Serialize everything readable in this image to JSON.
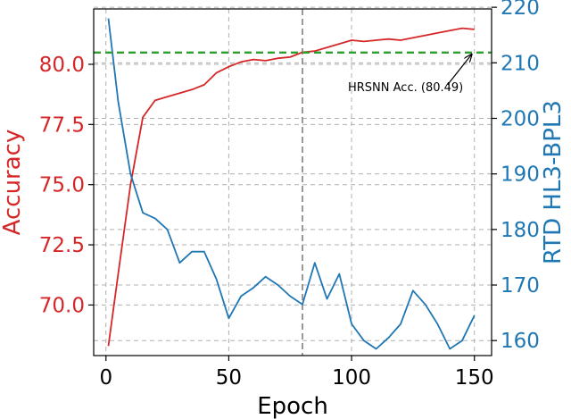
{
  "chart_data": {
    "type": "line",
    "xlabel": "Epoch",
    "ylabel_left": "Accuracy",
    "ylabel_right": "RTD HL3-BPL3",
    "xlim": [
      -5,
      157
    ],
    "ylim_left": [
      67.9,
      82.3
    ],
    "ylim_right": [
      157.3,
      219.7
    ],
    "x_ticks": [
      0,
      50,
      100,
      150
    ],
    "y_ticks_left": [
      70.0,
      72.5,
      75.0,
      77.5,
      80.0
    ],
    "y_ticks_right": [
      160,
      170,
      180,
      190,
      200,
      210,
      220
    ],
    "grid": true,
    "vertical_line": {
      "x": 80,
      "style": "dashed",
      "color": "#7f7f7f"
    },
    "reference_line": {
      "y": 80.49,
      "axis": "left",
      "style": "dashed",
      "color": "#2ca02c"
    },
    "annotation": {
      "text": "HRSNN Acc. (80.49)",
      "x": 150,
      "y": 80.49
    },
    "series": [
      {
        "axis": "left",
        "color": "#d62728",
        "x": [
          1,
          5,
          10,
          15,
          20,
          25,
          30,
          35,
          40,
          45,
          50,
          55,
          60,
          65,
          70,
          75,
          80,
          85,
          90,
          95,
          100,
          105,
          110,
          115,
          120,
          125,
          130,
          135,
          140,
          145,
          150
        ],
        "values": [
          68.3,
          71.3,
          75.0,
          77.8,
          78.5,
          78.65,
          78.8,
          78.95,
          79.15,
          79.65,
          79.9,
          80.1,
          80.2,
          80.15,
          80.25,
          80.3,
          80.5,
          80.55,
          80.7,
          80.85,
          81.0,
          80.95,
          81.0,
          81.05,
          81.0,
          81.1,
          81.2,
          81.3,
          81.4,
          81.5,
          81.45
        ]
      },
      {
        "axis": "right",
        "color": "#1f77b4",
        "x": [
          1,
          5,
          10,
          15,
          20,
          25,
          30,
          35,
          40,
          45,
          50,
          55,
          60,
          65,
          70,
          75,
          80,
          85,
          90,
          95,
          100,
          105,
          110,
          115,
          120,
          125,
          130,
          135,
          140,
          145,
          150
        ],
        "values": [
          218,
          203,
          190,
          183,
          182,
          180,
          174,
          176,
          176,
          171,
          164,
          168,
          169.5,
          171.5,
          170,
          168,
          166.5,
          174,
          167.5,
          172,
          163,
          160,
          158.5,
          160.5,
          163,
          169,
          166.5,
          163,
          158.5,
          160,
          164.5
        ]
      }
    ]
  }
}
